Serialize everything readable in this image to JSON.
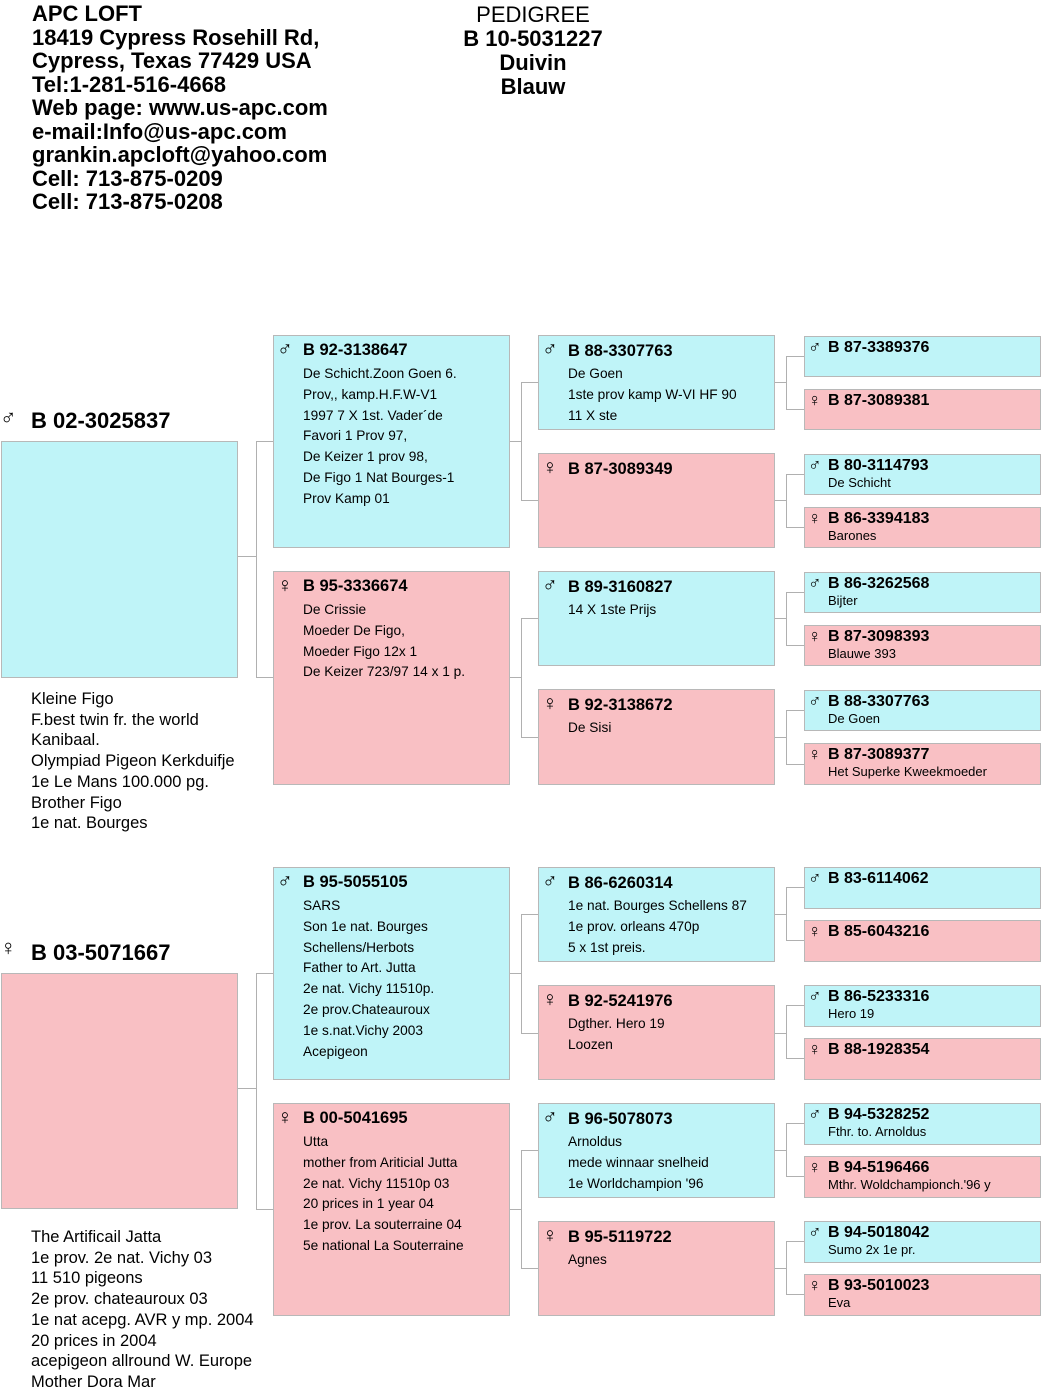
{
  "loft": {
    "lines": [
      "APC LOFT",
      "18419 Cypress Rosehill Rd,",
      "Cypress, Texas 77429 USA",
      "Tel:1-281-516-4668",
      "Web page: www.us-apc.com",
      "e-mail:Info@us-apc.com",
      "grankin.apcloft@yahoo.com",
      "Cell: 713-875-0209",
      "Cell: 713-875-0208"
    ]
  },
  "header": {
    "title": "PEDIGREE",
    "ring": "B 10-5031227",
    "sex": "Duivin",
    "color": "Blauw"
  },
  "colors": {
    "male": "#bff4f8",
    "female": "#f9c0c4",
    "line": "#b0b0b0"
  },
  "symbols": {
    "male": "♂",
    "female": "♀"
  },
  "sire": {
    "ring": "B 02-3025837",
    "info": [
      "Kleine Figo",
      "F.best twin fr. the world",
      "Kanibaal.",
      "Olympiad Pigeon Kerkduifje",
      "1e Le Mans 100.000 pg.",
      "Brother Figo",
      "1e nat. Bourges"
    ]
  },
  "dam": {
    "ring": "B 03-5071667",
    "info": [
      "The Artificail Jatta",
      "1e prov. 2e nat. Vichy 03",
      "11 510 pigeons",
      "2e prov. chateauroux 03",
      "1e nat acepg. AVR y mp. 2004",
      "20 prices in 2004",
      "acepigeon allround W. Europe",
      "Mother Dora Mar"
    ]
  },
  "parents": [
    {
      "ring": "B 92-3138647",
      "lines": [
        "De Schicht.Zoon Goen 6.",
        "Prov,, kamp.H.F.W-V1",
        "1997 7 X 1st. Vader´de",
        "Favori 1 Prov 97,",
        "De Keizer 1 prov 98,",
        "De Figo 1 Nat Bourges-1",
        "Prov Kamp 01"
      ]
    },
    {
      "ring": "B 95-3336674",
      "lines": [
        "De Crissie",
        "Moeder De Figo,",
        "Moeder Figo 12x 1",
        "De Keizer 723/97 14 x 1 p."
      ]
    },
    {
      "ring": "B 95-5055105",
      "lines": [
        "SARS",
        "Son 1e nat. Bourges",
        "Schellens/Herbots",
        "Father to Art. Jutta",
        "2e nat. Vichy 11510p.",
        "2e prov.Chateauroux",
        "1e s.nat.Vichy 2003",
        "Acepigeon"
      ]
    },
    {
      "ring": "B 00-5041695",
      "lines": [
        "Utta",
        "mother from Ariticial Jutta",
        "2e nat. Vichy 11510p 03",
        "20 prices in 1 year 04",
        "1e prov. La souterraine 04",
        "5e national La Souterraine"
      ]
    }
  ],
  "grandparents": [
    {
      "ring": "B 88-3307763",
      "lines": [
        "De Goen",
        "1ste prov kamp W-VI HF 90",
        "11 X ste"
      ]
    },
    {
      "ring": "B 87-3089349",
      "lines": []
    },
    {
      "ring": "B 89-3160827",
      "lines": [
        "14 X 1ste Prijs"
      ]
    },
    {
      "ring": "B 92-3138672",
      "lines": [
        "De Sisi"
      ]
    },
    {
      "ring": "B 86-6260314",
      "lines": [
        "1e nat. Bourges Schellens 87",
        "1e prov. orleans 470p",
        "5 x 1st preis."
      ]
    },
    {
      "ring": "B 92-5241976",
      "lines": [
        "Dgther. Hero 19",
        "Loozen"
      ]
    },
    {
      "ring": "B 96-5078073",
      "lines": [
        "Arnoldus",
        "mede winnaar snelheid",
        "1e Worldchampion '96"
      ]
    },
    {
      "ring": "B 95-5119722",
      "lines": [
        "Agnes"
      ]
    }
  ],
  "greatgrandparents": [
    {
      "ring": "B 87-3389376",
      "note": ""
    },
    {
      "ring": "B 87-3089381",
      "note": ""
    },
    {
      "ring": "B 80-3114793",
      "note": "De Schicht"
    },
    {
      "ring": "B 86-3394183",
      "note": "Barones"
    },
    {
      "ring": "B 86-3262568",
      "note": "Bijter"
    },
    {
      "ring": "B 87-3098393",
      "note": "Blauwe 393"
    },
    {
      "ring": "B 88-3307763",
      "note": "De Goen"
    },
    {
      "ring": "B 87-3089377",
      "note": "Het Superke Kweekmoeder"
    },
    {
      "ring": "B 83-6114062",
      "note": ""
    },
    {
      "ring": "B 85-6043216",
      "note": ""
    },
    {
      "ring": "B 86-5233316",
      "note": "Hero 19"
    },
    {
      "ring": "B 88-1928354",
      "note": ""
    },
    {
      "ring": "B 94-5328252",
      "note": "Fthr. to. Arnoldus"
    },
    {
      "ring": "B 94-5196466",
      "note": "Mthr. Woldchampionch.'96 y"
    },
    {
      "ring": "B 94-5018042",
      "note": "Sumo  2x 1e pr."
    },
    {
      "ring": "B 93-5010023",
      "note": "Eva"
    }
  ]
}
